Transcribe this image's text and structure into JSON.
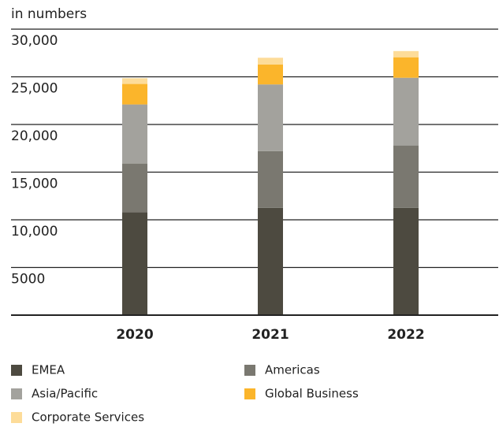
{
  "chart_data": {
    "type": "stacked_bar",
    "y_label": "in numbers",
    "categories": [
      "2020",
      "2021",
      "2022"
    ],
    "series": [
      {
        "name": "EMEA",
        "color": "#4d4a40",
        "values": [
          10800,
          11250,
          11250
        ]
      },
      {
        "name": "Americas",
        "color": "#7a7870",
        "values": [
          5100,
          5950,
          6550
        ]
      },
      {
        "name": "Asia/Pacific",
        "color": "#a3a29d",
        "values": [
          6200,
          7000,
          7100
        ]
      },
      {
        "name": "Global Business",
        "color": "#fbb52b",
        "values": [
          2150,
          2100,
          2150
        ]
      },
      {
        "name": "Corporate Services",
        "color": "#fddc99",
        "values": [
          600,
          700,
          650
        ]
      }
    ],
    "ylim": [
      0,
      30000
    ],
    "yticks": [
      5000,
      {
        "value": 10000,
        "label": "10,000"
      },
      {
        "value": 15000,
        "label": "15,000"
      },
      {
        "value": 20000,
        "label": "20,000"
      },
      {
        "value": 25000,
        "label": "25,000"
      },
      {
        "value": 30000,
        "label": "30,000"
      }
    ],
    "grid": true
  }
}
